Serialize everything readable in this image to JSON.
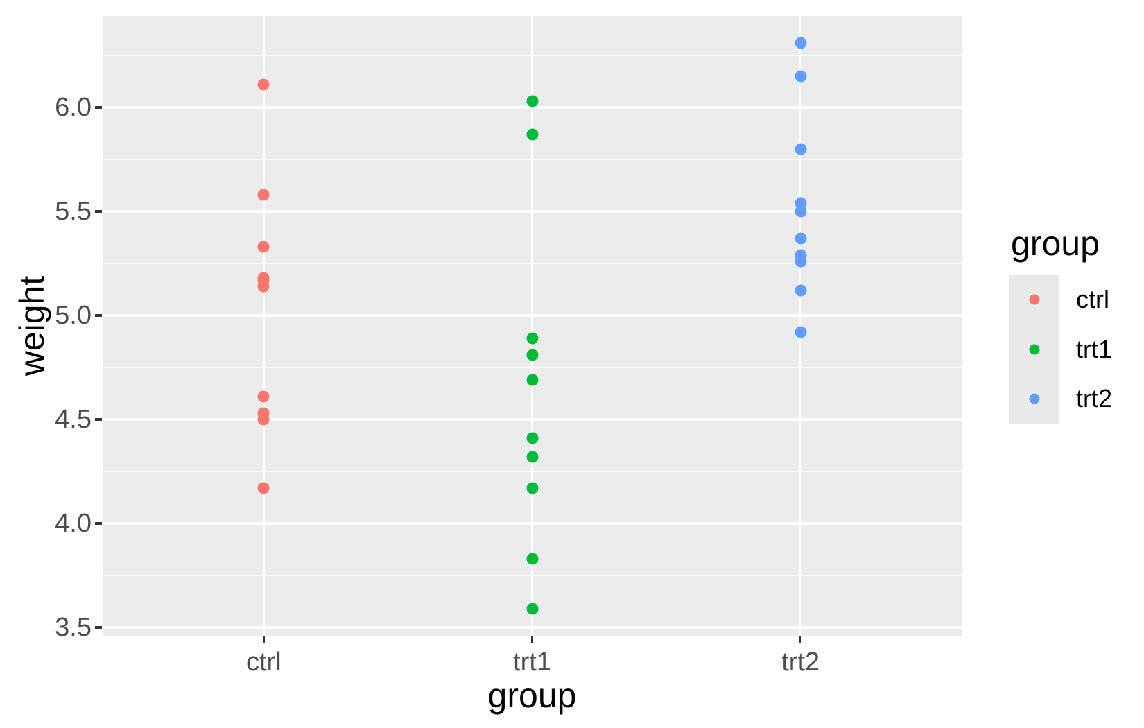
{
  "chart_data": {
    "type": "scatter",
    "title": "",
    "xlabel": "group",
    "ylabel": "weight",
    "categories": [
      "ctrl",
      "trt1",
      "trt2"
    ],
    "series": [
      {
        "name": "ctrl",
        "color": "#F8766D",
        "values": [
          4.17,
          5.58,
          5.18,
          6.11,
          4.5,
          4.61,
          5.17,
          4.53,
          5.33,
          5.14
        ]
      },
      {
        "name": "trt1",
        "color": "#00BA38",
        "values": [
          4.81,
          4.17,
          4.41,
          3.59,
          5.87,
          3.83,
          6.03,
          4.89,
          4.32,
          4.69
        ]
      },
      {
        "name": "trt2",
        "color": "#619CFF",
        "values": [
          6.31,
          5.12,
          5.54,
          5.5,
          5.37,
          5.29,
          4.92,
          6.15,
          5.8,
          5.26
        ]
      }
    ],
    "y_axis": {
      "tick_values": [
        3.5,
        4.0,
        4.5,
        5.0,
        5.5,
        6.0
      ],
      "tick_labels": [
        "3.5",
        "4.0",
        "4.5",
        "5.0",
        "5.5",
        "6.0"
      ],
      "minor_tick_values": [
        3.75,
        4.25,
        4.75,
        5.25,
        5.75,
        6.25
      ],
      "ylim": [
        3.4567,
        6.44
      ]
    },
    "x_axis": {
      "tick_labels": [
        "ctrl",
        "trt1",
        "trt2"
      ]
    },
    "legend": {
      "title": "group",
      "position": "right",
      "entries": [
        {
          "label": "ctrl",
          "color": "#F8766D"
        },
        {
          "label": "trt1",
          "color": "#00BA38"
        },
        {
          "label": "trt2",
          "color": "#619CFF"
        }
      ]
    },
    "grid": true,
    "style": {
      "panel_bg": "#EBEBEB",
      "grid_color": "#FFFFFF",
      "tick_label_color": "#4D4D4D",
      "tick_mark_color": "#333333",
      "title_color": "#000000"
    }
  }
}
